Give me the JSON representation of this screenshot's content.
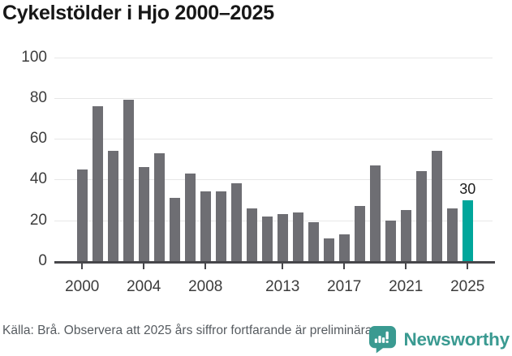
{
  "title": "Cykelstölder i Hjo 2000–2025",
  "chart_data": {
    "type": "bar",
    "title": "Cykelstölder i Hjo 2000–2025",
    "categories": [
      "2000",
      "2001",
      "2002",
      "2003",
      "2004",
      "2005",
      "2006",
      "2007",
      "2008",
      "2009",
      "2010",
      "2011",
      "2012",
      "2013",
      "2014",
      "2015",
      "2016",
      "2017",
      "2018",
      "2019",
      "2020",
      "2021",
      "2022",
      "2023",
      "2024",
      "2025"
    ],
    "values": [
      45,
      76,
      54,
      79,
      46,
      53,
      31,
      43,
      34,
      34,
      38,
      26,
      22,
      23,
      24,
      19,
      11,
      13,
      27,
      47,
      20,
      25,
      44,
      54,
      26,
      30
    ],
    "ylim": [
      0,
      100
    ],
    "yticks": [
      0,
      20,
      40,
      60,
      80,
      100
    ],
    "xtick_indices": [
      0,
      4,
      8,
      13,
      17,
      21,
      25
    ],
    "xtick_labels": [
      "2000",
      "2004",
      "2008",
      "2013",
      "2017",
      "2021",
      "2025"
    ],
    "grid": "horizontal",
    "legend": "none",
    "highlight": {
      "category": "2025",
      "value": 30,
      "label": "30"
    },
    "colors": {
      "bar": "#6e6e73",
      "highlight_bar": "#00a69b",
      "gridline": "#e7e7e7",
      "axis": "#47474b",
      "tick_label": "#3c3c3c",
      "value_label": "#1d1d1d"
    }
  },
  "footer": {
    "source": "Källa: Brå. Observera att 2025 års siffror fortfarande är preliminära.",
    "brand": "Newsworthy",
    "brand_color": "#3a9a91",
    "logo_icon": "newsworthy-speech-bubble-bar-chart-icon"
  }
}
